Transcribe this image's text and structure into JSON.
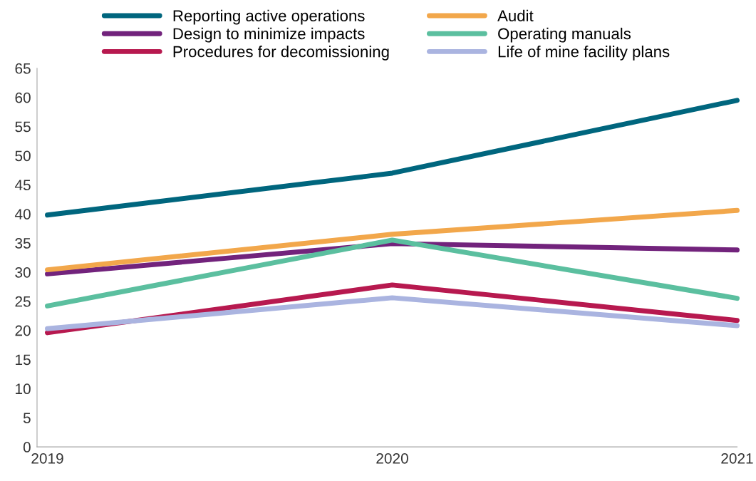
{
  "chart_data": {
    "type": "line",
    "categories": [
      "2019",
      "2020",
      "2021"
    ],
    "series": [
      {
        "name": "Reporting active operations",
        "color": "#00667e",
        "values": [
          39.8,
          47.0,
          59.5
        ]
      },
      {
        "name": "Design to minimize impacts",
        "color": "#72237c",
        "values": [
          29.7,
          34.9,
          33.8
        ]
      },
      {
        "name": "Procedures for decomissioning",
        "color": "#b7194f",
        "values": [
          19.6,
          27.8,
          21.7
        ]
      },
      {
        "name": "Audit",
        "color": "#f2a74b",
        "values": [
          30.4,
          36.5,
          40.6
        ]
      },
      {
        "name": "Operating manuals",
        "color": "#5bbf9f",
        "values": [
          24.2,
          35.5,
          25.5
        ]
      },
      {
        "name": "Life of mine facility plans",
        "color": "#aab4e0",
        "values": [
          20.3,
          25.6,
          20.8
        ]
      }
    ],
    "ylim": [
      0,
      65
    ],
    "yticks": [
      0,
      5,
      10,
      15,
      20,
      25,
      30,
      35,
      40,
      45,
      50,
      55,
      60,
      65
    ],
    "grid": false,
    "legend": "top",
    "marker": "none",
    "line_style": "solid"
  }
}
